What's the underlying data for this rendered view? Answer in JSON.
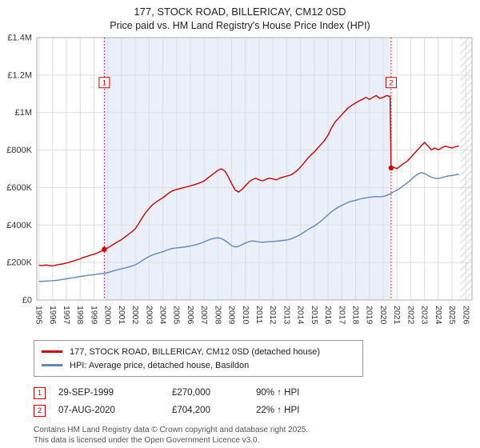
{
  "footer": {
    "line1": "Contains HM Land Registry data © Crown copyright and database right 2025.",
    "line2": "This data is licensed under the Open Government Licence v3.0."
  },
  "chart_data": {
    "type": "line",
    "title": "177, STOCK ROAD, BILLERICAY, CM12 0SD",
    "subtitle": "Price paid vs. HM Land Registry's House Price Index (HPI)",
    "xlabel": "",
    "ylabel": "",
    "y_unit": "GBP thousands",
    "xlim": [
      1994.85,
      2026.45
    ],
    "ylim": [
      0,
      1400
    ],
    "grid": true,
    "legend_position": "bottom",
    "x_ticks": [
      1995,
      1996,
      1997,
      1998,
      1999,
      2000,
      2001,
      2002,
      2003,
      2004,
      2005,
      2006,
      2007,
      2008,
      2009,
      2010,
      2011,
      2012,
      2013,
      2014,
      2015,
      2016,
      2017,
      2018,
      2019,
      2020,
      2021,
      2022,
      2023,
      2024,
      2025,
      2026
    ],
    "y_ticks": [
      {
        "v": 0,
        "label": "£0"
      },
      {
        "v": 200,
        "label": "£200K"
      },
      {
        "v": 400,
        "label": "£400K"
      },
      {
        "v": 600,
        "label": "£600K"
      },
      {
        "v": 800,
        "label": "£800K"
      },
      {
        "v": 1000,
        "label": "£1M"
      },
      {
        "v": 1200,
        "label": "£1.2M"
      },
      {
        "v": 1400,
        "label": "£1.4M"
      }
    ],
    "shaded_region": [
      1999.75,
      2020.58
    ],
    "no_data_after": 2025.6,
    "sales": [
      {
        "marker": "1",
        "date": "29-SEP-1999",
        "price": "£270,000",
        "price_k": 270,
        "hpi_note": "90% ↑ HPI",
        "x": 1999.75
      },
      {
        "marker": "2",
        "date": "07-AUG-2020",
        "price": "£704,200",
        "price_k": 704.2,
        "hpi_note": "22% ↑ HPI",
        "x": 2020.58
      }
    ],
    "series": [
      {
        "id": "property",
        "name": "177, STOCK ROAD, BILLERICAY, CM12 0SD (detached house)",
        "color": "#cc0000",
        "points": [
          [
            1995,
            186
          ],
          [
            1995.25,
            183
          ],
          [
            1995.5,
            187
          ],
          [
            1995.75,
            184
          ],
          [
            1996,
            182
          ],
          [
            1996.25,
            186
          ],
          [
            1996.5,
            190
          ],
          [
            1996.75,
            193
          ],
          [
            1997,
            197
          ],
          [
            1997.25,
            202
          ],
          [
            1997.5,
            208
          ],
          [
            1997.75,
            214
          ],
          [
            1998,
            220
          ],
          [
            1998.25,
            227
          ],
          [
            1998.5,
            233
          ],
          [
            1998.75,
            239
          ],
          [
            1999,
            244
          ],
          [
            1999.25,
            251
          ],
          [
            1999.5,
            259
          ],
          [
            1999.75,
            270
          ],
          [
            2000,
            278
          ],
          [
            2000.25,
            290
          ],
          [
            2000.5,
            301
          ],
          [
            2000.75,
            312
          ],
          [
            2001,
            322
          ],
          [
            2001.25,
            336
          ],
          [
            2001.5,
            350
          ],
          [
            2001.75,
            364
          ],
          [
            2002,
            380
          ],
          [
            2002.25,
            408
          ],
          [
            2002.5,
            438
          ],
          [
            2002.75,
            466
          ],
          [
            2003,
            488
          ],
          [
            2003.25,
            508
          ],
          [
            2003.5,
            522
          ],
          [
            2003.75,
            534
          ],
          [
            2004,
            545
          ],
          [
            2004.25,
            560
          ],
          [
            2004.5,
            574
          ],
          [
            2004.75,
            584
          ],
          [
            2005,
            590
          ],
          [
            2005.25,
            594
          ],
          [
            2005.5,
            599
          ],
          [
            2005.75,
            604
          ],
          [
            2006,
            609
          ],
          [
            2006.25,
            614
          ],
          [
            2006.5,
            620
          ],
          [
            2006.75,
            627
          ],
          [
            2007,
            635
          ],
          [
            2007.25,
            650
          ],
          [
            2007.5,
            664
          ],
          [
            2007.75,
            678
          ],
          [
            2008,
            692
          ],
          [
            2008.25,
            700
          ],
          [
            2008.5,
            688
          ],
          [
            2008.75,
            658
          ],
          [
            2009,
            620
          ],
          [
            2009.25,
            587
          ],
          [
            2009.5,
            576
          ],
          [
            2009.75,
            590
          ],
          [
            2010,
            610
          ],
          [
            2010.25,
            629
          ],
          [
            2010.5,
            643
          ],
          [
            2010.75,
            649
          ],
          [
            2011,
            641
          ],
          [
            2011.25,
            636
          ],
          [
            2011.5,
            644
          ],
          [
            2011.75,
            650
          ],
          [
            2012,
            646
          ],
          [
            2012.25,
            641
          ],
          [
            2012.5,
            650
          ],
          [
            2012.75,
            656
          ],
          [
            2013,
            661
          ],
          [
            2013.25,
            666
          ],
          [
            2013.5,
            676
          ],
          [
            2013.75,
            691
          ],
          [
            2014,
            710
          ],
          [
            2014.25,
            731
          ],
          [
            2014.5,
            754
          ],
          [
            2014.75,
            774
          ],
          [
            2015,
            790
          ],
          [
            2015.25,
            811
          ],
          [
            2015.5,
            831
          ],
          [
            2015.75,
            852
          ],
          [
            2016,
            880
          ],
          [
            2016.25,
            919
          ],
          [
            2016.5,
            949
          ],
          [
            2016.75,
            969
          ],
          [
            2017,
            989
          ],
          [
            2017.25,
            1009
          ],
          [
            2017.5,
            1028
          ],
          [
            2017.75,
            1040
          ],
          [
            2018,
            1051
          ],
          [
            2018.25,
            1062
          ],
          [
            2018.5,
            1071
          ],
          [
            2018.75,
            1081
          ],
          [
            2019,
            1070
          ],
          [
            2019.25,
            1081
          ],
          [
            2019.5,
            1091
          ],
          [
            2019.75,
            1076
          ],
          [
            2020,
            1081
          ],
          [
            2020.25,
            1091
          ],
          [
            2020.5,
            1086
          ],
          [
            2020.58,
            704.2
          ],
          [
            2020.75,
            708
          ],
          [
            2021,
            701
          ],
          [
            2021.25,
            716
          ],
          [
            2021.5,
            729
          ],
          [
            2021.75,
            741
          ],
          [
            2022,
            760
          ],
          [
            2022.25,
            781
          ],
          [
            2022.5,
            801
          ],
          [
            2022.75,
            821
          ],
          [
            2023,
            841
          ],
          [
            2023.25,
            822
          ],
          [
            2023.5,
            801
          ],
          [
            2023.75,
            811
          ],
          [
            2024,
            801
          ],
          [
            2024.25,
            812
          ],
          [
            2024.5,
            821
          ],
          [
            2024.75,
            816
          ],
          [
            2025,
            811
          ],
          [
            2025.25,
            818
          ],
          [
            2025.5,
            822
          ]
        ]
      },
      {
        "id": "hpi",
        "name": "HPI: Average price, detached house, Basildon",
        "color": "#6089b8",
        "points": [
          [
            1995,
            100
          ],
          [
            1995.25,
            99
          ],
          [
            1995.5,
            101
          ],
          [
            1995.75,
            102
          ],
          [
            1996,
            103
          ],
          [
            1996.25,
            105
          ],
          [
            1996.5,
            107
          ],
          [
            1996.75,
            110
          ],
          [
            1997,
            113
          ],
          [
            1997.25,
            116
          ],
          [
            1997.5,
            119
          ],
          [
            1997.75,
            122
          ],
          [
            1998,
            125
          ],
          [
            1998.25,
            128
          ],
          [
            1998.5,
            131
          ],
          [
            1998.75,
            133
          ],
          [
            1999,
            135
          ],
          [
            1999.25,
            138
          ],
          [
            1999.5,
            141
          ],
          [
            1999.75,
            142
          ],
          [
            2000,
            146
          ],
          [
            2000.25,
            152
          ],
          [
            2000.5,
            157
          ],
          [
            2000.75,
            162
          ],
          [
            2001,
            166
          ],
          [
            2001.25,
            171
          ],
          [
            2001.5,
            176
          ],
          [
            2001.75,
            181
          ],
          [
            2002,
            188
          ],
          [
            2002.25,
            198
          ],
          [
            2002.5,
            210
          ],
          [
            2002.75,
            222
          ],
          [
            2003,
            232
          ],
          [
            2003.25,
            240
          ],
          [
            2003.5,
            247
          ],
          [
            2003.75,
            252
          ],
          [
            2004,
            258
          ],
          [
            2004.25,
            265
          ],
          [
            2004.5,
            271
          ],
          [
            2004.75,
            276
          ],
          [
            2005,
            278
          ],
          [
            2005.25,
            280
          ],
          [
            2005.5,
            282
          ],
          [
            2005.75,
            285
          ],
          [
            2006,
            288
          ],
          [
            2006.25,
            292
          ],
          [
            2006.5,
            297
          ],
          [
            2006.75,
            303
          ],
          [
            2007,
            310
          ],
          [
            2007.25,
            318
          ],
          [
            2007.5,
            325
          ],
          [
            2007.75,
            330
          ],
          [
            2008,
            332
          ],
          [
            2008.25,
            328
          ],
          [
            2008.5,
            318
          ],
          [
            2008.75,
            305
          ],
          [
            2009,
            290
          ],
          [
            2009.25,
            283
          ],
          [
            2009.5,
            286
          ],
          [
            2009.75,
            295
          ],
          [
            2010,
            304
          ],
          [
            2010.25,
            311
          ],
          [
            2010.5,
            315
          ],
          [
            2010.75,
            313
          ],
          [
            2011,
            310
          ],
          [
            2011.25,
            308
          ],
          [
            2011.5,
            310
          ],
          [
            2011.75,
            312
          ],
          [
            2012,
            312
          ],
          [
            2012.25,
            314
          ],
          [
            2012.5,
            316
          ],
          [
            2012.75,
            318
          ],
          [
            2013,
            320
          ],
          [
            2013.25,
            325
          ],
          [
            2013.5,
            332
          ],
          [
            2013.75,
            340
          ],
          [
            2014,
            350
          ],
          [
            2014.25,
            362
          ],
          [
            2014.5,
            374
          ],
          [
            2014.75,
            385
          ],
          [
            2015,
            395
          ],
          [
            2015.25,
            408
          ],
          [
            2015.5,
            422
          ],
          [
            2015.75,
            438
          ],
          [
            2016,
            455
          ],
          [
            2016.25,
            471
          ],
          [
            2016.5,
            484
          ],
          [
            2016.75,
            495
          ],
          [
            2017,
            505
          ],
          [
            2017.25,
            514
          ],
          [
            2017.5,
            522
          ],
          [
            2017.75,
            528
          ],
          [
            2018,
            532
          ],
          [
            2018.25,
            538
          ],
          [
            2018.5,
            542
          ],
          [
            2018.75,
            545
          ],
          [
            2019,
            548
          ],
          [
            2019.25,
            550
          ],
          [
            2019.5,
            552
          ],
          [
            2019.75,
            550
          ],
          [
            2020,
            553
          ],
          [
            2020.25,
            558
          ],
          [
            2020.5,
            566
          ],
          [
            2020.75,
            577
          ],
          [
            2021,
            586
          ],
          [
            2021.25,
            598
          ],
          [
            2021.5,
            612
          ],
          [
            2021.75,
            625
          ],
          [
            2022,
            640
          ],
          [
            2022.25,
            658
          ],
          [
            2022.5,
            671
          ],
          [
            2022.75,
            680
          ],
          [
            2023,
            675
          ],
          [
            2023.25,
            665
          ],
          [
            2023.5,
            655
          ],
          [
            2023.75,
            650
          ],
          [
            2024,
            648
          ],
          [
            2024.25,
            652
          ],
          [
            2024.5,
            658
          ],
          [
            2024.75,
            662
          ],
          [
            2025,
            664
          ],
          [
            2025.25,
            668
          ],
          [
            2025.5,
            671
          ]
        ]
      }
    ]
  }
}
